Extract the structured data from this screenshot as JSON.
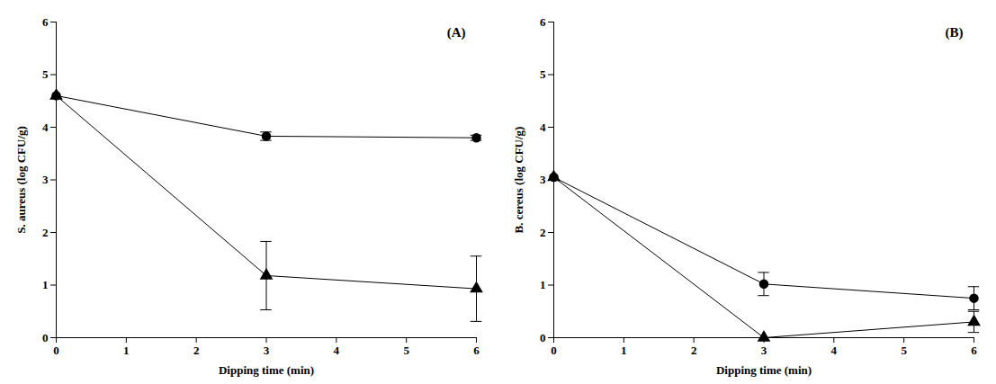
{
  "chart_data": [
    {
      "type": "line",
      "title": "(A)",
      "xlabel": "Dipping time (min)",
      "ylabel": "S. aureus (log CFU/g)",
      "x": [
        0,
        3,
        6
      ],
      "series": [
        {
          "color": "#000000",
          "marker": "circle",
          "values": [
            4.6,
            3.83,
            3.8
          ],
          "errors": [
            0,
            0.08,
            0.05
          ]
        },
        {
          "color": "#000000",
          "marker": "triangle",
          "values": [
            4.6,
            1.18,
            0.93
          ],
          "errors": [
            0,
            0.65,
            0.62
          ]
        }
      ],
      "xlim": [
        0,
        6
      ],
      "xticks": [
        0,
        1,
        2,
        3,
        4,
        5,
        6
      ],
      "ylim": [
        0,
        6
      ],
      "yticks": [
        0,
        1,
        2,
        3,
        4,
        5,
        6
      ]
    },
    {
      "type": "line",
      "title": "(B)",
      "xlabel": "Dipping time (min)",
      "ylabel": "B. cereus (log CFU/g)",
      "x": [
        0,
        3,
        6
      ],
      "series": [
        {
          "color": "#000000",
          "marker": "circle",
          "values": [
            3.05,
            1.02,
            0.75
          ],
          "errors": [
            0,
            0.22,
            0.22
          ]
        },
        {
          "color": "#000000",
          "marker": "triangle",
          "values": [
            3.05,
            0.0,
            0.3
          ],
          "errors": [
            0,
            0,
            0.2
          ]
        }
      ],
      "xlim": [
        0,
        6
      ],
      "xticks": [
        0,
        1,
        2,
        3,
        4,
        5,
        6
      ],
      "ylim": [
        0,
        6
      ],
      "yticks": [
        0,
        1,
        2,
        3,
        4,
        5,
        6
      ]
    }
  ]
}
